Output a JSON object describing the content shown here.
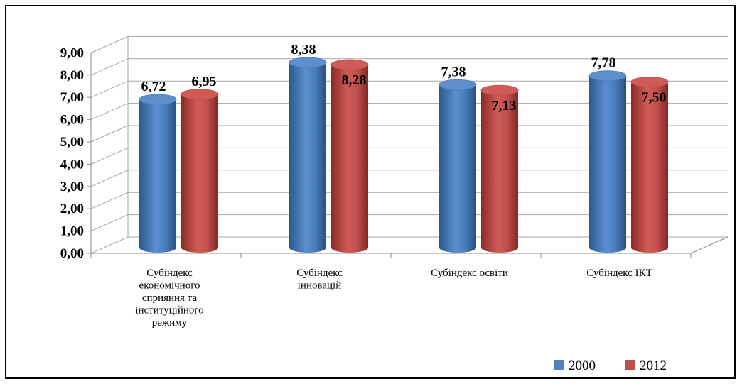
{
  "chart_data": {
    "type": "bar",
    "categories": [
      [
        "Субіндекс",
        "економічного",
        "сприяння та",
        "інституційного",
        "режиму"
      ],
      [
        "Субіндекс",
        "інновацій"
      ],
      [
        "Субіндекс освіти"
      ],
      [
        "Субіндекс ІКТ"
      ]
    ],
    "series": [
      {
        "name": "2000",
        "values": [
          6.72,
          8.38,
          7.38,
          7.78
        ],
        "labels": [
          "6,72",
          "8,38",
          "7,38",
          "7,78"
        ],
        "color": "#4f81bd"
      },
      {
        "name": "2012",
        "values": [
          6.95,
          8.28,
          7.13,
          7.5
        ],
        "labels": [
          "6,95",
          "8,28",
          "7,13",
          "7,50"
        ],
        "color": "#c0504d"
      }
    ],
    "yticks": [
      "0,00",
      "1,00",
      "2,00",
      "3,00",
      "4,00",
      "5,00",
      "6,00",
      "7,00",
      "8,00",
      "9,00"
    ],
    "ylim": [
      0,
      9
    ],
    "grid": true,
    "legend": "bottom-right",
    "three_d": true
  }
}
